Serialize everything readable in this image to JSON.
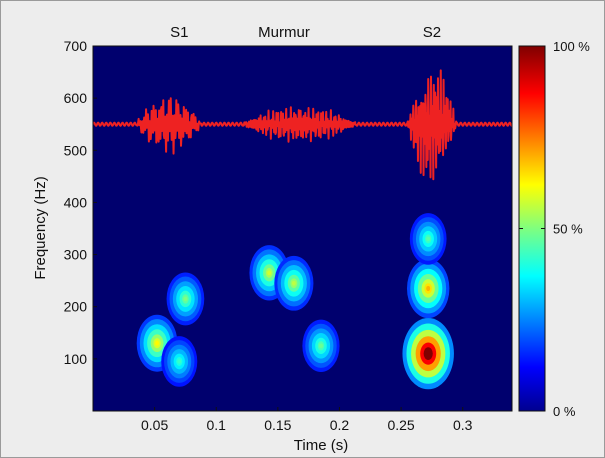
{
  "chart_data": {
    "type": "heatmap",
    "title": "",
    "xlabel": "Time (s)",
    "ylabel": "Frequency (Hz)",
    "xlim": [
      0,
      0.34
    ],
    "ylim": [
      0,
      700
    ],
    "x_ticks": [
      0.05,
      0.1,
      0.15,
      0.2,
      0.25,
      0.3
    ],
    "y_ticks": [
      100,
      200,
      300,
      400,
      500,
      600,
      700
    ],
    "annotations": [
      {
        "text": "S1",
        "x": 0.07
      },
      {
        "text": "Murmur",
        "x": 0.155
      },
      {
        "text": "S2",
        "x": 0.275
      }
    ],
    "colorbar": {
      "colormap": "jet",
      "ticks": [
        {
          "label": "100 %",
          "value": 1.0
        },
        {
          "label": "50 %",
          "value": 0.5
        },
        {
          "label": "0 %",
          "value": 0.0
        }
      ]
    },
    "intensity_regions": [
      {
        "t": 0.052,
        "f": 130,
        "intensity": 0.55
      },
      {
        "t": 0.075,
        "f": 215,
        "intensity": 0.42
      },
      {
        "t": 0.07,
        "f": 95,
        "intensity": 0.35
      },
      {
        "t": 0.143,
        "f": 265,
        "intensity": 0.5
      },
      {
        "t": 0.163,
        "f": 245,
        "intensity": 0.48
      },
      {
        "t": 0.185,
        "f": 125,
        "intensity": 0.4
      },
      {
        "t": 0.272,
        "f": 110,
        "intensity": 1.0
      },
      {
        "t": 0.272,
        "f": 235,
        "intensity": 0.62
      },
      {
        "t": 0.272,
        "f": 330,
        "intensity": 0.38
      }
    ],
    "overlay_waveform": {
      "color": "#ee2222",
      "baseline_hz": 550,
      "bursts": [
        {
          "t_start": 0.035,
          "t_end": 0.088,
          "amplitude_hz": 55
        },
        {
          "t_start": 0.12,
          "t_end": 0.215,
          "amplitude_hz": 35
        },
        {
          "t_start": 0.255,
          "t_end": 0.295,
          "amplitude_hz": 120
        }
      ]
    },
    "grid": false,
    "legend": "colorbar right"
  }
}
